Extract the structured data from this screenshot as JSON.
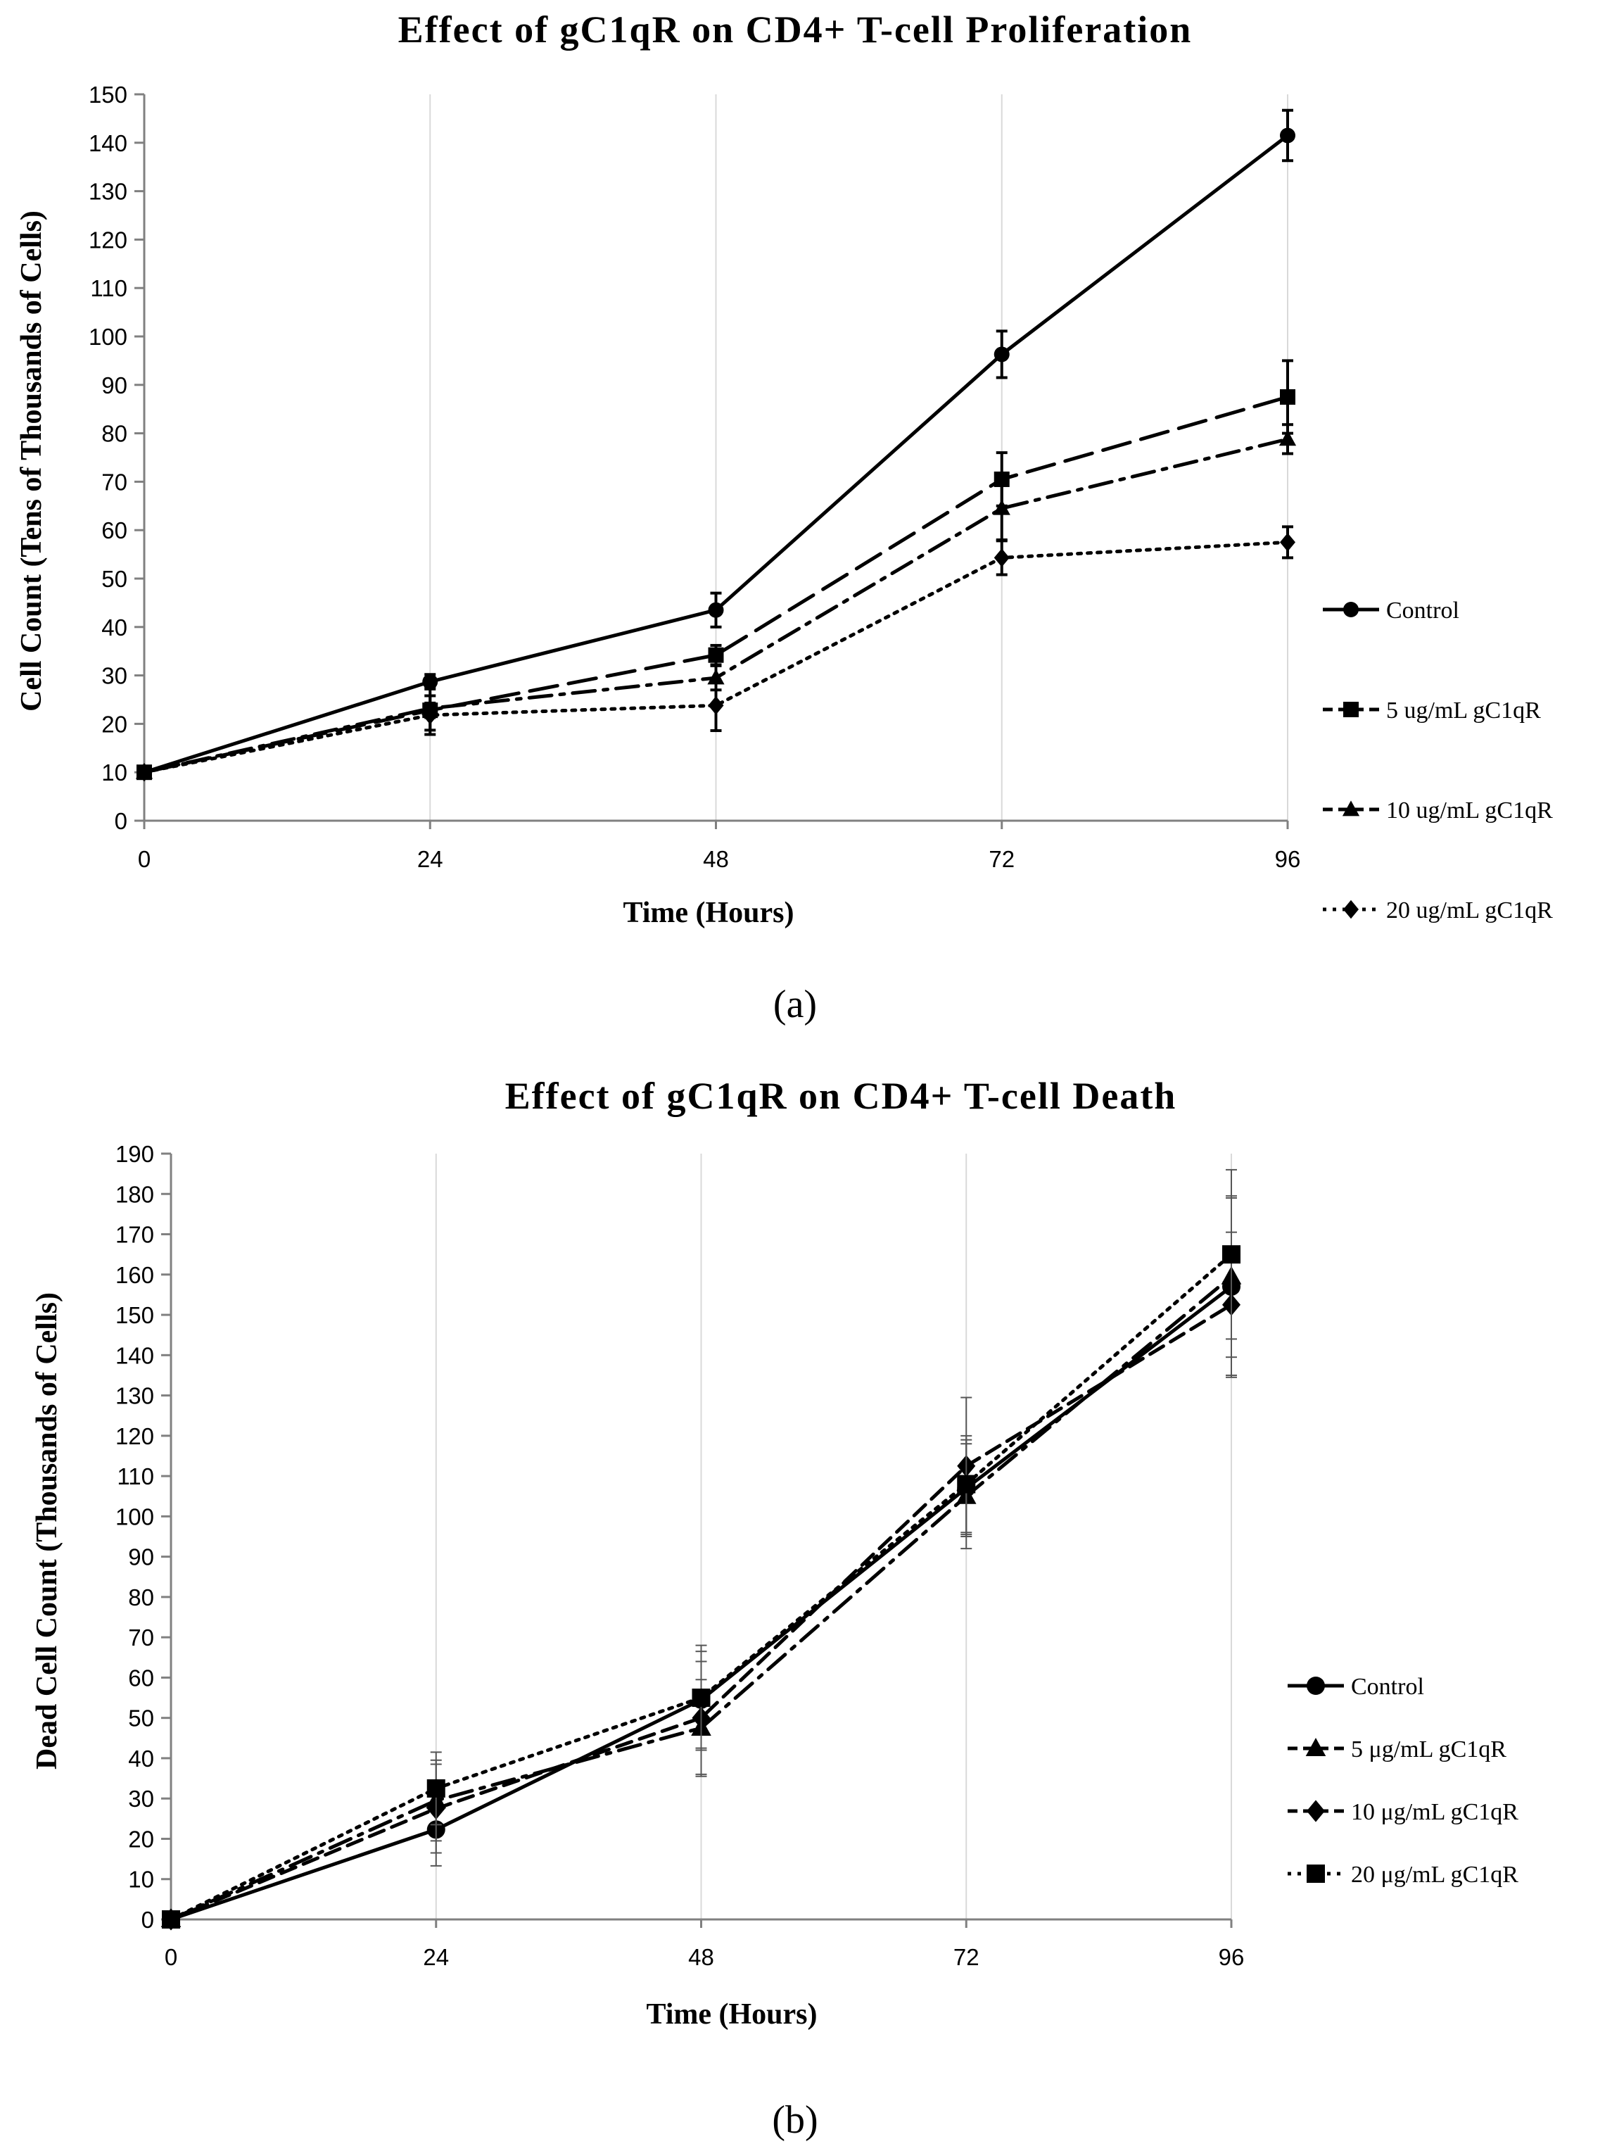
{
  "chart_data": [
    {
      "panel": "(a)",
      "type": "line",
      "title": "Effect of gC1qR on CD4+ T-cell Proliferation",
      "xlabel": "Time (Hours)",
      "ylabel": "Cell Count (Tens of Thousands of Cells)",
      "x": [
        0,
        24,
        48,
        72,
        96
      ],
      "xlim": [
        0,
        96
      ],
      "ylim": [
        0,
        150
      ],
      "ytick_step": 10,
      "grid": "vertical",
      "legend_position": "right",
      "series": [
        {
          "name": "Control",
          "marker": "circle",
          "dash": "solid",
          "values": [
            10,
            28.7,
            43.5,
            96.3,
            141.5
          ],
          "errors": [
            0,
            1.5,
            3.5,
            4.8,
            5.2
          ]
        },
        {
          "name": "5 ug/mL gC1qR",
          "marker": "square",
          "dash": "longdash",
          "values": [
            10,
            22.8,
            34.2,
            70.5,
            87.5
          ],
          "errors": [
            0,
            1.5,
            2.0,
            5.5,
            7.5
          ]
        },
        {
          "name": "10 ug/mL gC1qR",
          "marker": "triangle",
          "dash": "dashdot",
          "values": [
            10,
            23.2,
            29.5,
            64.5,
            78.8
          ],
          "errors": [
            0,
            4.5,
            2.5,
            6.5,
            3.0
          ]
        },
        {
          "name": "20 ug/mL gC1qR",
          "marker": "diamond",
          "dash": "dot",
          "values": [
            10,
            21.8,
            23.8,
            54.3,
            57.5
          ],
          "errors": [
            0,
            4.0,
            5.2,
            3.5,
            3.2
          ]
        }
      ]
    },
    {
      "panel": "(b)",
      "type": "line",
      "title": "Effect of gC1qR on CD4+ T-cell Death",
      "xlabel": "Time (Hours)",
      "ylabel": "Dead Cell Count (Thousands of Cells)",
      "x": [
        0,
        24,
        48,
        72,
        96
      ],
      "xlim": [
        0,
        96
      ],
      "ylim": [
        0,
        190
      ],
      "ytick_step": 10,
      "grid": "vertical",
      "legend_position": "right",
      "series": [
        {
          "name": "Control",
          "marker": "circle",
          "dash": "solid",
          "values": [
            0,
            22.3,
            54.5,
            107.0,
            157.0
          ],
          "errors": [
            0,
            9.0,
            12.0,
            12.0,
            22.0
          ]
        },
        {
          "name": "5 μg/mL gC1qR",
          "marker": "triangle",
          "dash": "dashdot",
          "values": [
            0,
            29.5,
            47.5,
            105.0,
            159.5
          ],
          "errors": [
            0,
            10.0,
            12.0,
            13.0,
            20.0
          ]
        },
        {
          "name": "10 μg/mL gC1qR",
          "marker": "diamond",
          "dash": "dash",
          "values": [
            0,
            27.5,
            50.0,
            112.5,
            152.5
          ],
          "errors": [
            0,
            11.0,
            14.0,
            17.0,
            18.0
          ]
        },
        {
          "name": "20 μg/mL gC1qR",
          "marker": "square",
          "dash": "dot",
          "values": [
            0,
            32.5,
            55.0,
            108.0,
            165.0
          ],
          "errors": [
            0,
            9.0,
            13.0,
            12.0,
            21.0
          ]
        }
      ]
    }
  ]
}
